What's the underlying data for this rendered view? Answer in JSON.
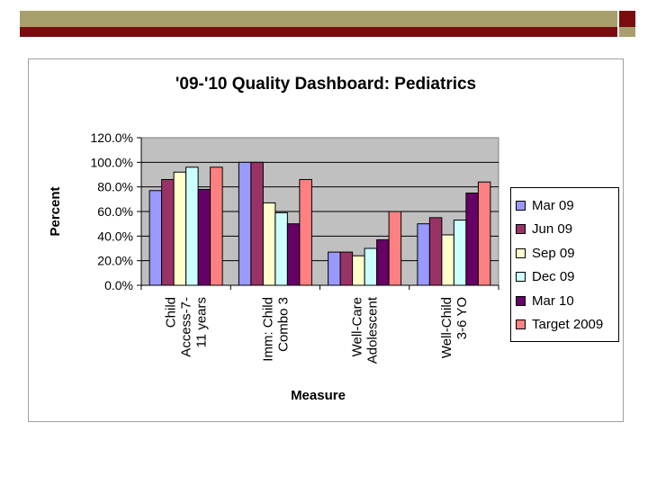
{
  "chart_data": {
    "type": "bar",
    "title": "'09-'10 Quality Dashboard:  Pediatrics",
    "xlabel": "Measure",
    "ylabel": "Percent",
    "ylim": [
      0,
      120
    ],
    "yticks": [
      "0.0%",
      "20.0%",
      "40.0%",
      "60.0%",
      "80.0%",
      "100.0%",
      "120.0%"
    ],
    "grid": true,
    "legend_position": "right",
    "categories": [
      [
        "Child",
        "Access-7-",
        "11 years"
      ],
      [
        "Imm: Child",
        "Combo 3"
      ],
      [
        "Well-Care",
        "Adolescent"
      ],
      [
        "Well-Child",
        "3-6 YO"
      ]
    ],
    "series": [
      {
        "name": "Mar 09",
        "color": "#9999ff",
        "values": [
          77,
          100,
          27,
          50
        ]
      },
      {
        "name": "Jun 09",
        "color": "#993366",
        "values": [
          86,
          100,
          27,
          55
        ]
      },
      {
        "name": "Sep 09",
        "color": "#ffffcc",
        "values": [
          92,
          67,
          24,
          41
        ]
      },
      {
        "name": "Dec 09",
        "color": "#ccffff",
        "values": [
          96,
          59,
          30,
          53
        ]
      },
      {
        "name": "Mar 10",
        "color": "#660066",
        "values": [
          78,
          50,
          37,
          75
        ]
      },
      {
        "name": "Target 2009",
        "color": "#ff8080",
        "values": [
          96,
          86,
          60,
          84
        ]
      }
    ]
  }
}
